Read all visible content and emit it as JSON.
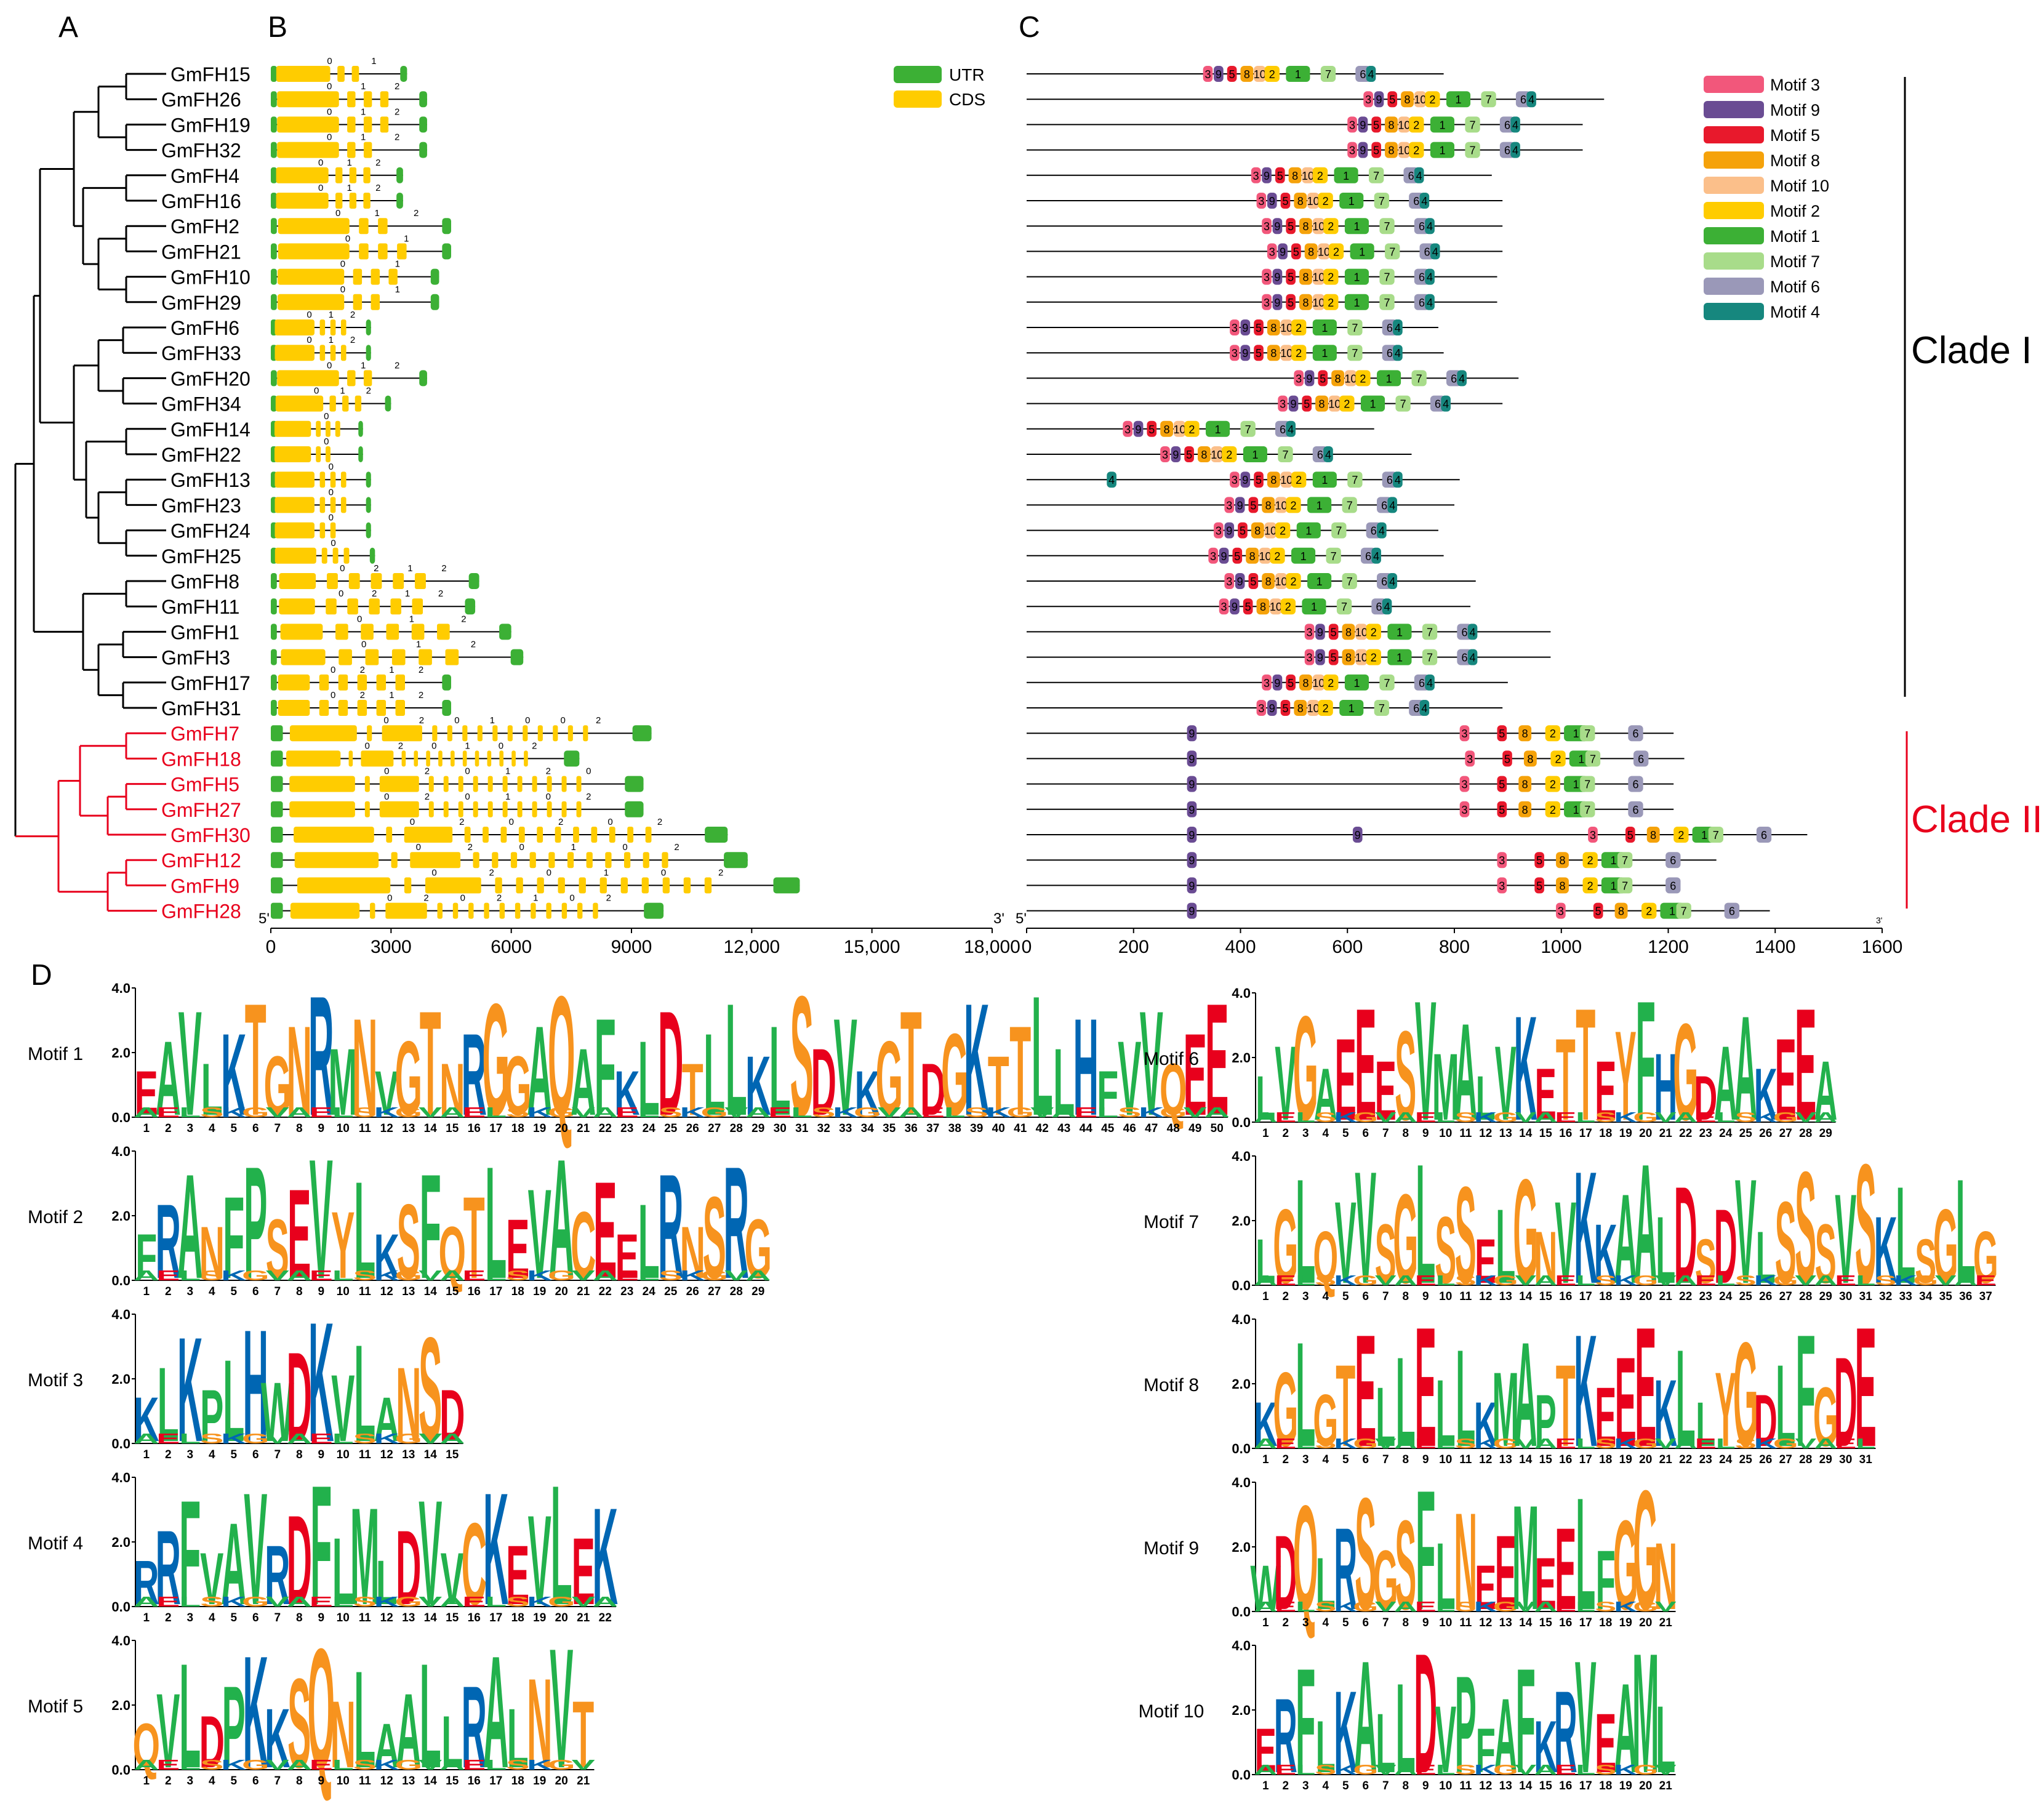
{
  "panels": {
    "a": "A",
    "b": "B",
    "c": "C",
    "d": "D"
  },
  "genes": [
    "GmFH15",
    "GmFH26",
    "GmFH19",
    "GmFH32",
    "GmFH4",
    "GmFH16",
    "GmFH2",
    "GmFH21",
    "GmFH10",
    "GmFH29",
    "GmFH6",
    "GmFH33",
    "GmFH20",
    "GmFH34",
    "GmFH14",
    "GmFH22",
    "GmFH13",
    "GmFH23",
    "GmFH24",
    "GmFH25",
    "GmFH8",
    "GmFH11",
    "GmFH1",
    "GmFH3",
    "GmFH17",
    "GmFH31",
    "GmFH7",
    "GmFH18",
    "GmFH5",
    "GmFH27",
    "GmFH30",
    "GmFH12",
    "GmFH9",
    "GmFH28"
  ],
  "clade2_genes": [
    "GmFH7",
    "GmFH18",
    "GmFH5",
    "GmFH27",
    "GmFH30",
    "GmFH12",
    "GmFH9",
    "GmFH28"
  ],
  "clades": {
    "clade1": "Clade I",
    "clade2": "Clade II",
    "clade1_color": "#000000",
    "clade2_color": "#e8001c"
  },
  "gene_structure": {
    "legend": [
      {
        "label": "UTR",
        "color": "#3cb035"
      },
      {
        "label": "CDS",
        "color": "#ffcc00"
      }
    ],
    "axis_ticks": [
      "0",
      "3000",
      "6000",
      "9000",
      "12,000",
      "15,000",
      "18,000"
    ],
    "axis_max": 18000,
    "end5": "5'",
    "end3": "3'"
  },
  "motif_structure": {
    "legend": [
      {
        "label": "Motif 3",
        "color": "#f2577b",
        "id": "3"
      },
      {
        "label": "Motif 9",
        "color": "#6a4c93",
        "id": "9"
      },
      {
        "label": "Motif 5",
        "color": "#e8192c",
        "id": "5"
      },
      {
        "label": "Motif 8",
        "color": "#f5a20a",
        "id": "8"
      },
      {
        "label": "Motif 10",
        "color": "#fbbf8a",
        "id": "10"
      },
      {
        "label": "Motif 2",
        "color": "#ffcc00",
        "id": "2"
      },
      {
        "label": "Motif 1",
        "color": "#3cb035",
        "id": "1"
      },
      {
        "label": "Motif 7",
        "color": "#a8dc8a",
        "id": "7"
      },
      {
        "label": "Motif 6",
        "color": "#9a98b8",
        "id": "6"
      },
      {
        "label": "Motif 4",
        "color": "#16877e",
        "id": "4"
      }
    ],
    "axis_ticks": [
      "0",
      "200",
      "400",
      "600",
      "800",
      "1000",
      "1200",
      "1400",
      "1600"
    ],
    "axis_max": 1600,
    "end5": "5'",
    "end3": "3'"
  },
  "logos": {
    "y_ticks": [
      "4.0",
      "2.0",
      "0.0"
    ],
    "left": [
      {
        "title": "Motif 1",
        "length": 50,
        "seq": "EAVLKTGNRMNVGTNRGGAQAFKLDTLLKLSDVKGTDGKTTLLHFVVQEE"
      },
      {
        "title": "Motif 2",
        "length": 29,
        "seq": "FRANFPSEVYLKSFQTLEVACEELRNSRG"
      },
      {
        "title": "Motif 3",
        "length": 15,
        "seq": "KLKPLHWDKVLANSD"
      },
      {
        "title": "Motif 4",
        "length": 22,
        "seq": "RRFVAVRDFLMLDVVCKEVLEK"
      },
      {
        "title": "Motif 5",
        "length": 21,
        "seq": "QVLDPKKSQNLAALLRALNVT"
      }
    ],
    "right": [
      {
        "title": "Motif 6",
        "length": 29,
        "seq": "LVGAEEESVMALVKETTEYFHGDAAKEEA"
      },
      {
        "title": "Motif 7",
        "length": 37,
        "seq": "LGLQVVSGLSSELGNVKKAALDSDVLSSSVSKLSGLG"
      },
      {
        "title": "Motif 8",
        "length": 31,
        "seq": "KGLGTELLELLKMAPTKEEEKLLYGDLFGDE"
      },
      {
        "title": "Motif 9",
        "length": 21,
        "seq": "WDQLRSGSFLNEEMEELFGGN"
      },
      {
        "title": "Motif 10",
        "length": 21,
        "seq": "ERFLKALLDVPFAFKRVEAML"
      }
    ]
  }
}
